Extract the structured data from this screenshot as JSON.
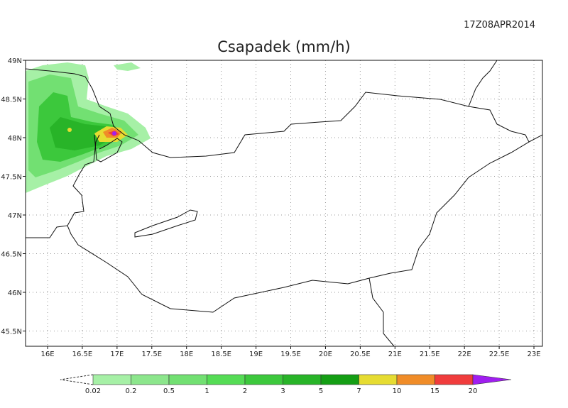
{
  "timestamp": "17Z08APR2014",
  "title": "Csapadek (mm/h)",
  "lat_labels": [
    "49N",
    "48.5N",
    "48N",
    "47.5N",
    "47N",
    "46.5N",
    "46N",
    "45.5N"
  ],
  "lon_labels": [
    "16E",
    "16.5E",
    "17E",
    "17.5E",
    "18E",
    "18.5E",
    "19E",
    "19.5E",
    "20E",
    "20.5E",
    "21E",
    "21.5E",
    "22E",
    "22.5E",
    "23E"
  ],
  "colorbar": {
    "labels": [
      "0.02",
      "0.2",
      "0.5",
      "1",
      "2",
      "3",
      "5",
      "7",
      "10",
      "15",
      "20"
    ],
    "colors": [
      "#a6f0a6",
      "#8ce68c",
      "#72e072",
      "#55dc55",
      "#3cc83c",
      "#28b428",
      "#149e14",
      "#e6dc32",
      "#f08c28",
      "#f03c3c"
    ],
    "over_color": "#a01ef0"
  }
}
